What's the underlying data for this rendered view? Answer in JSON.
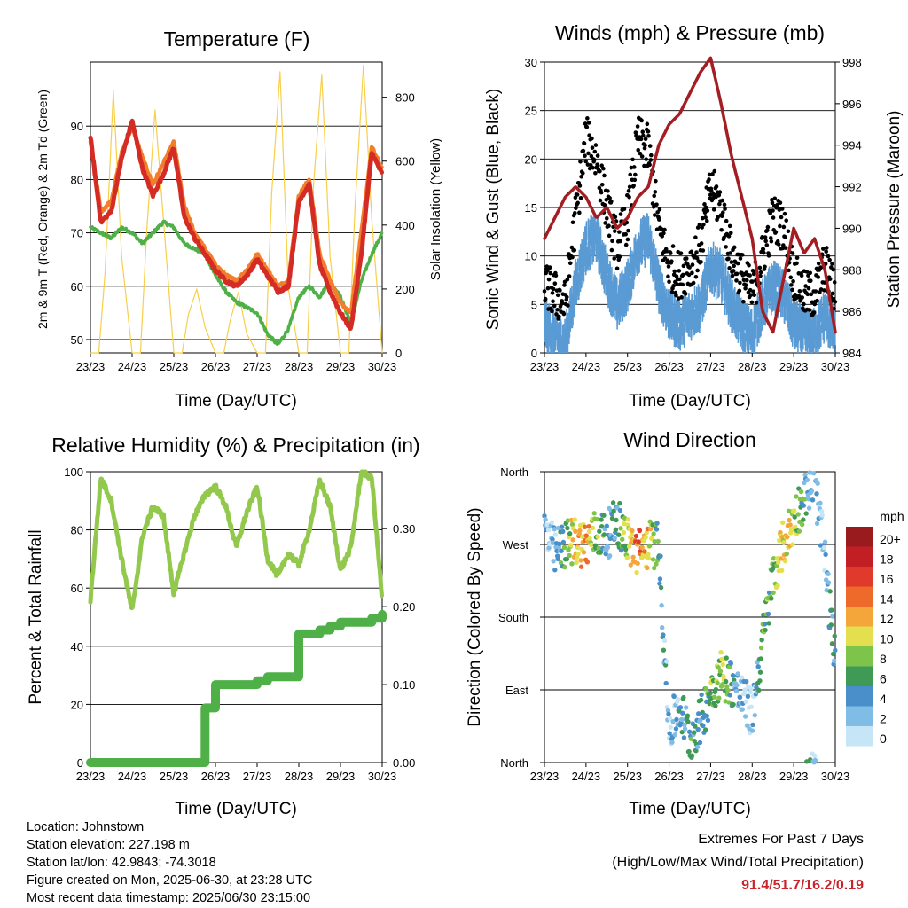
{
  "panels": {
    "temperature": {
      "title": "Temperature (F)",
      "xlabel": "Time (Day/UTC)",
      "ylabel_left": "2m & 9m T (Red, Orange) & 2m Td (Green)",
      "ylabel_right": "Solar Insolation (Yellow)",
      "yticks_left": [
        "50",
        "60",
        "70",
        "80",
        "90"
      ],
      "yticks_right": [
        "0",
        "200",
        "400",
        "600",
        "800"
      ]
    },
    "winds": {
      "title": "Winds (mph) & Pressure (mb)",
      "xlabel": "Time (Day/UTC)",
      "ylabel_left": "Sonic Wind & Gust (Blue, Black)",
      "ylabel_right": "Station Pressure (Maroon)",
      "yticks_left": [
        "0",
        "5",
        "10",
        "15",
        "20",
        "25",
        "30"
      ],
      "yticks_right": [
        "984",
        "986",
        "988",
        "990",
        "992",
        "994",
        "996",
        "998"
      ]
    },
    "humidity": {
      "title": "Relative Humidity (%) & Precipitation (in)",
      "xlabel": "Time (Day/UTC)",
      "ylabel_left": "Percent & Total Rainfall",
      "yticks_left": [
        "0",
        "20",
        "40",
        "60",
        "80",
        "100"
      ],
      "yticks_right": [
        "0.00",
        "0.10",
        "0.20",
        "0.30"
      ]
    },
    "direction": {
      "title": "Wind Direction",
      "xlabel": "Time (Day/UTC)",
      "ylabel_left": "Direction (Colored By Speed)",
      "yticks_left": [
        "North",
        "East",
        "South",
        "West",
        "North"
      ],
      "colorbar_title": "mph",
      "colorbar_labels": [
        "0",
        "2",
        "4",
        "6",
        "8",
        "10",
        "12",
        "14",
        "16",
        "18",
        "20+"
      ],
      "colorbar_colors": [
        "#c6e5f6",
        "#80bde6",
        "#4a8fc9",
        "#3f9a55",
        "#7fc44a",
        "#e3df4e",
        "#f4a63b",
        "#ee6a2a",
        "#e03a2c",
        "#c21f25",
        "#9a1b1e"
      ]
    }
  },
  "xticks": [
    "23/23",
    "24/23",
    "25/23",
    "26/23",
    "27/23",
    "28/23",
    "29/23",
    "30/23"
  ],
  "info_lines": [
    "Location: Johnstown",
    "Station elevation: 227.198 m",
    "Station lat/lon: 42.9843; -74.3018",
    "Figure created on Mon, 2025-06-30, at 23:28 UTC",
    "Most recent data timestamp: 2025/06/30 23:15:00"
  ],
  "extremes": {
    "line1": "Extremes For Past 7 Days",
    "line2": "(High/Low/Max Wind/Total Precipitation)",
    "values": "91.4/51.7/16.2/0.19"
  },
  "colors": {
    "temp_2m": "#d42b25",
    "temp_9m": "#f27d2a",
    "dewpoint": "#4fb047",
    "solar": "#f7cf4a",
    "wind": "#5a9bd4",
    "gust": "#000000",
    "pressure": "#a31d22",
    "rh": "#92c84b",
    "precip": "#4fb047"
  },
  "chart_data": [
    {
      "type": "line",
      "title": "Temperature (F)",
      "x": [
        0,
        0.25,
        0.5,
        0.75,
        1,
        1.25,
        1.5,
        1.75,
        2,
        2.25,
        2.5,
        2.75,
        3,
        3.25,
        3.5,
        3.75,
        4,
        4.25,
        4.5,
        4.75,
        5,
        5.25,
        5.5,
        5.75,
        6,
        6.25,
        6.5,
        6.75,
        7
      ],
      "x_tick_labels": [
        "23/23",
        "24/23",
        "25/23",
        "26/23",
        "27/23",
        "28/23",
        "29/23",
        "30/23"
      ],
      "ylim": [
        47.5,
        102
      ],
      "series": [
        {
          "values": [
            88,
            72,
            74,
            84,
            91,
            82,
            77,
            81,
            86,
            73,
            69,
            66,
            63,
            61,
            60,
            62,
            65,
            62,
            59,
            60,
            76,
            79,
            64,
            59,
            55,
            52,
            66,
            85,
            81
          ]
        },
        {
          "values": [
            87,
            74,
            76,
            85,
            90,
            84,
            79,
            83,
            87,
            75,
            70,
            67,
            64,
            62,
            61,
            63,
            66,
            63,
            60,
            61,
            77,
            80,
            66,
            61,
            57,
            55,
            70,
            86,
            82
          ]
        },
        {
          "values": [
            71,
            70,
            69,
            71,
            70,
            68,
            70,
            72,
            71,
            68,
            67,
            66,
            62,
            59,
            57,
            56,
            55,
            51,
            49,
            52,
            58,
            60,
            58,
            61,
            58,
            53,
            61,
            66,
            70
          ]
        }
      ],
      "secondary": {
        "ylim": [
          0,
          910
        ],
        "series": [
          {
            "x": [
              0,
              0.2,
              0.35,
              0.55,
              0.75,
              1,
              1.2,
              1.35,
              1.55,
              1.75,
              2,
              2.2,
              2.35,
              2.55,
              2.75,
              3,
              3.2,
              3.35,
              3.55,
              3.75,
              4,
              4.2,
              4.35,
              4.55,
              4.75,
              5,
              5.2,
              5.35,
              5.55,
              5.75,
              6,
              6.2,
              6.35,
              6.55,
              6.75,
              7
            ],
            "values": [
              0,
              0,
              250,
              820,
              300,
              0,
              0,
              380,
              760,
              420,
              0,
              0,
              120,
              200,
              80,
              0,
              0,
              100,
              190,
              60,
              0,
              0,
              500,
              880,
              200,
              0,
              0,
              520,
              870,
              300,
              0,
              0,
              460,
              900,
              420,
              0
            ]
          }
        ]
      }
    },
    {
      "type": "line",
      "title": "Winds (mph) & Pressure (mb)",
      "x": [
        0,
        0.25,
        0.5,
        0.75,
        1,
        1.25,
        1.5,
        1.75,
        2,
        2.25,
        2.5,
        2.75,
        3,
        3.25,
        3.5,
        3.75,
        4,
        4.25,
        4.5,
        4.75,
        5,
        5.25,
        5.5,
        5.75,
        6,
        6.25,
        6.5,
        6.75,
        7
      ],
      "x_tick_labels": [
        "23/23",
        "24/23",
        "25/23",
        "26/23",
        "27/23",
        "28/23",
        "29/23",
        "30/23"
      ],
      "ylim": [
        0,
        30
      ],
      "series": [
        {
          "values": [
            4,
            3,
            2,
            8,
            12,
            13,
            9,
            6,
            8,
            12,
            13,
            8,
            5,
            4,
            5,
            6,
            10,
            9,
            6,
            4,
            3,
            6,
            8,
            7,
            4,
            3,
            3,
            5,
            3
          ]
        },
        {
          "values": [
            7,
            6,
            5,
            14,
            22,
            20,
            15,
            11,
            14,
            22,
            21,
            13,
            9,
            8,
            9,
            11,
            17,
            15,
            10,
            8,
            6,
            10,
            14,
            13,
            8,
            6,
            6,
            9,
            6
          ]
        }
      ],
      "secondary": {
        "ylim": [
          984,
          998
        ],
        "series": [
          {
            "values": [
              989.5,
              990.5,
              991.5,
              992,
              991.5,
              990.5,
              991,
              990,
              990.5,
              991.5,
              992,
              994,
              995,
              995.5,
              996.5,
              997.5,
              998.2,
              996,
              993.5,
              991.5,
              989.5,
              986,
              985,
              987.5,
              990,
              988.8,
              989.5,
              988,
              985
            ]
          }
        ]
      }
    },
    {
      "type": "line",
      "title": "Relative Humidity (%) & Precipitation (in)",
      "x": [
        0,
        0.25,
        0.5,
        0.75,
        1,
        1.25,
        1.5,
        1.75,
        2,
        2.25,
        2.5,
        2.75,
        3,
        3.25,
        3.5,
        3.75,
        4,
        4.25,
        4.5,
        4.75,
        5,
        5.25,
        5.5,
        5.75,
        6,
        6.25,
        6.5,
        6.75,
        7
      ],
      "x_tick_labels": [
        "23/23",
        "24/23",
        "25/23",
        "26/23",
        "27/23",
        "28/23",
        "29/23",
        "30/23"
      ],
      "ylim": [
        0,
        100
      ],
      "series": [
        {
          "values": [
            56,
            98,
            90,
            70,
            52,
            78,
            88,
            85,
            58,
            72,
            85,
            92,
            95,
            88,
            74,
            86,
            95,
            70,
            64,
            72,
            68,
            80,
            97,
            88,
            66,
            74,
            100,
            98,
            56
          ]
        }
      ],
      "secondary": {
        "ylim": [
          0,
          0.373
        ],
        "series": [
          {
            "values": [
              0,
              0,
              0,
              0,
              0,
              0,
              0,
              0,
              0,
              0,
              0,
              0.07,
              0.1,
              0.1,
              0.1,
              0.1,
              0.105,
              0.11,
              0.11,
              0.11,
              0.165,
              0.165,
              0.17,
              0.175,
              0.18,
              0.18,
              0.18,
              0.185,
              0.19
            ]
          }
        ]
      }
    },
    {
      "type": "scatter",
      "title": "Wind Direction",
      "x": [
        0,
        0.25,
        0.5,
        0.75,
        1,
        1.25,
        1.5,
        1.75,
        2,
        2.25,
        2.5,
        2.75,
        3,
        3.25,
        3.5,
        3.75,
        4,
        4.25,
        4.5,
        4.75,
        5,
        5.25,
        5.5,
        5.75,
        6,
        6.25,
        6.5,
        6.75,
        7
      ],
      "x_tick_labels": [
        "23/23",
        "24/23",
        "25/23",
        "26/23",
        "27/23",
        "28/23",
        "29/23",
        "30/23"
      ],
      "ylim": [
        0,
        360
      ],
      "y_tick_labels": [
        "North",
        "East",
        "South",
        "West",
        "North"
      ],
      "series": [
        {
          "values": [
            290,
            260,
            270,
            275,
            270,
            285,
            280,
            300,
            275,
            260,
            270,
            270,
            40,
            70,
            30,
            50,
            90,
            110,
            100,
            80,
            60,
            150,
            230,
            270,
            300,
            330,
            350,
            250,
            120
          ]
        }
      ],
      "color_values": [
        3,
        3,
        8,
        12,
        14,
        9,
        5,
        5,
        10,
        15,
        12,
        6,
        3,
        4,
        6,
        5,
        8,
        10,
        6,
        3,
        2,
        8,
        8,
        12,
        10,
        6,
        3,
        4,
        6
      ]
    }
  ]
}
